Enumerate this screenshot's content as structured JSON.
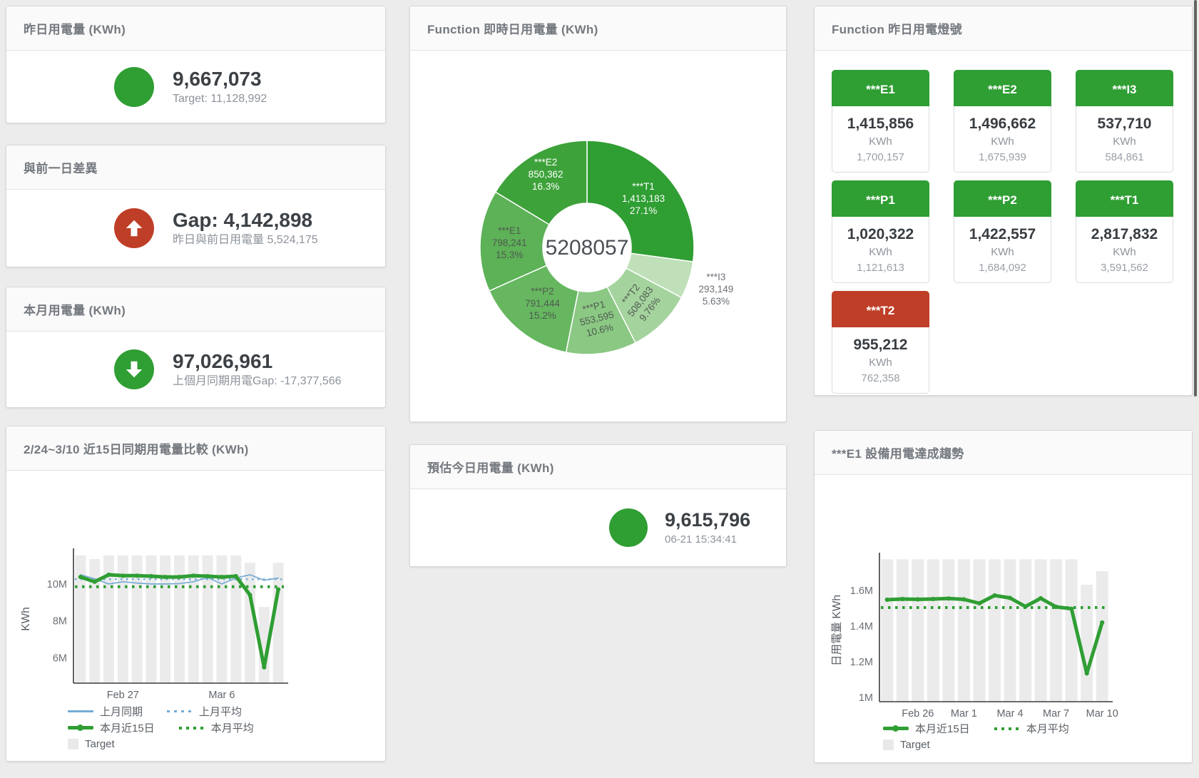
{
  "page": {
    "bg": "#ececec"
  },
  "colors": {
    "green": "#2f9e33",
    "red": "#bf3e27",
    "blue": "#76abd5",
    "bar": "#ebebeb"
  },
  "stat_cards": [
    {
      "title": "昨日用電量 (KWh)",
      "value": "9,667,073",
      "subtitle": "Target: 11,128,992",
      "icon": "circle",
      "icon_color": "#2f9e33"
    },
    {
      "title": "與前一日差異",
      "value": "Gap: 4,142,898",
      "subtitle": "昨日與前日用電量 5,524,175",
      "icon": "arrow-up",
      "icon_color": "#bf3e27"
    },
    {
      "title": "本月用電量 (KWh)",
      "value": "97,026,961",
      "subtitle": "上個月同期用電Gap: -17,377,566",
      "icon": "arrow-down",
      "icon_color": "#2f9e33"
    },
    {
      "title": "預估今日用電量 (KWh)",
      "value": "9,615,796",
      "subtitle": "06-21 15:34:41",
      "icon": "circle",
      "icon_color": "#2f9e33"
    }
  ],
  "lights": {
    "title": "Function 昨日用電燈號",
    "tiles": [
      {
        "name": "***E1",
        "value": "1,415,856",
        "unit": "KWh",
        "target": "1,700,157",
        "color": "#2f9e33"
      },
      {
        "name": "***E2",
        "value": "1,496,662",
        "unit": "KWh",
        "target": "1,675,939",
        "color": "#2f9e33"
      },
      {
        "name": "***I3",
        "value": "537,710",
        "unit": "KWh",
        "target": "584,861",
        "color": "#2f9e33"
      },
      {
        "name": "***P1",
        "value": "1,020,322",
        "unit": "KWh",
        "target": "1,121,613",
        "color": "#2f9e33"
      },
      {
        "name": "***P2",
        "value": "1,422,557",
        "unit": "KWh",
        "target": "1,684,092",
        "color": "#2f9e33"
      },
      {
        "name": "***T1",
        "value": "2,817,832",
        "unit": "KWh",
        "target": "3,591,562",
        "color": "#2f9e33"
      },
      {
        "name": "***T2",
        "value": "955,212",
        "unit": "KWh",
        "target": "762,358",
        "color": "#bf3e27"
      }
    ]
  },
  "chart_data": [
    {
      "id": "realtime-donut",
      "type": "pie",
      "title": "Function 即時日用電量 (KWh)",
      "center_total": "5208057",
      "slices": [
        {
          "label": "***T1",
          "value": 1413183,
          "display": "1,413,183",
          "pct": "27.1%",
          "color": "#2f9e33"
        },
        {
          "label": "***I3",
          "value": 293149,
          "display": "293,149",
          "pct": "5.63%",
          "color": "#bfe0b9"
        },
        {
          "label": "***T2",
          "value": 508083,
          "display": "508,083",
          "pct": "9.76%",
          "color": "#a5d39e"
        },
        {
          "label": "***P1",
          "value": 553595,
          "display": "553,595",
          "pct": "10.6%",
          "color": "#8bc884"
        },
        {
          "label": "***P2",
          "value": 791444,
          "display": "791,444",
          "pct": "15.2%",
          "color": "#66b760"
        },
        {
          "label": "***E1",
          "value": 798241,
          "display": "798,241",
          "pct": "15.3%",
          "color": "#5db157"
        },
        {
          "label": "***E2",
          "value": 850362,
          "display": "850,362",
          "pct": "16.3%",
          "color": "#3ea23a"
        }
      ]
    },
    {
      "id": "compare-15d",
      "type": "line+bar",
      "title": "2/24~3/10 近15日同期用電量比較 (KWh)",
      "ylabel": "KWh",
      "ylim": [
        4.62,
        11.62
      ],
      "yticks": [
        {
          "v": 6,
          "label": "6M"
        },
        {
          "v": 8,
          "label": "8M"
        },
        {
          "v": 10,
          "label": "10M"
        }
      ],
      "xticks": [
        {
          "i": 3,
          "label": "Feb 27"
        },
        {
          "i": 10,
          "label": "Mar 6"
        }
      ],
      "series": [
        {
          "name": "Target",
          "kind": "bar",
          "color": "#ebebeb",
          "values": [
            11.55,
            11.35,
            11.55,
            11.55,
            11.55,
            11.55,
            11.55,
            11.55,
            11.55,
            11.55,
            11.55,
            11.55,
            11.15,
            8.75,
            11.15
          ]
        },
        {
          "name": "上月平均",
          "kind": "dotted",
          "color": "#76abd5",
          "value": 10.26
        },
        {
          "name": "本月平均",
          "kind": "dotted-bold",
          "color": "#2f9e33",
          "value": 9.85
        },
        {
          "name": "上月同期",
          "kind": "line",
          "color": "#76abd5",
          "values": [
            10.5,
            10.28,
            10.0,
            10.12,
            10.05,
            10.0,
            10.0,
            10.02,
            10.12,
            10.35,
            10.0,
            10.32,
            10.5,
            10.2,
            10.32
          ]
        },
        {
          "name": "本月近15日",
          "kind": "thick",
          "color": "#2f9e33",
          "values": [
            10.38,
            10.12,
            10.5,
            10.45,
            10.45,
            10.42,
            10.38,
            10.38,
            10.45,
            10.42,
            10.38,
            10.42,
            9.4,
            5.48,
            9.7
          ]
        }
      ],
      "legend": [
        [
          {
            "label": "上月同期",
            "marker": "line",
            "color": "#76abd5"
          },
          {
            "label": "上月平均",
            "marker": "dotted",
            "color": "#76abd5"
          }
        ],
        [
          {
            "label": "本月近15日",
            "marker": "thick",
            "color": "#2f9e33"
          },
          {
            "label": "本月平均",
            "marker": "dotted-bold",
            "color": "#2f9e33"
          }
        ],
        [
          {
            "label": "Target",
            "marker": "square",
            "color": "#e9e9e9"
          }
        ]
      ]
    },
    {
      "id": "e1-trend",
      "type": "line+bar",
      "title": "***E1 設備用電達成趨勢",
      "ylabel": "日用電量 KWh",
      "ylim": [
        0.976,
        1.78
      ],
      "yticks": [
        {
          "v": 1,
          "label": "1M"
        },
        {
          "v": 1.2,
          "label": "1.2M"
        },
        {
          "v": 1.4,
          "label": "1.4M"
        },
        {
          "v": 1.6,
          "label": "1.6M"
        }
      ],
      "xticks": [
        {
          "i": 2,
          "label": "Feb 26"
        },
        {
          "i": 5,
          "label": "Mar 1"
        },
        {
          "i": 8,
          "label": "Mar 4"
        },
        {
          "i": 11,
          "label": "Mar 7"
        },
        {
          "i": 14,
          "label": "Mar 10"
        }
      ],
      "series": [
        {
          "name": "Target",
          "kind": "bar",
          "color": "#ebebeb",
          "values": [
            1.775,
            1.775,
            1.775,
            1.775,
            1.775,
            1.775,
            1.775,
            1.775,
            1.775,
            1.775,
            1.775,
            1.775,
            1.775,
            1.632,
            1.708
          ]
        },
        {
          "name": "本月平均",
          "kind": "dotted-bold",
          "color": "#2f9e33",
          "value": 1.504
        },
        {
          "name": "本月近15日",
          "kind": "thick",
          "color": "#2f9e33",
          "values": [
            1.548,
            1.552,
            1.55,
            1.552,
            1.555,
            1.55,
            1.528,
            1.572,
            1.558,
            1.51,
            1.556,
            1.508,
            1.497,
            1.135,
            1.42
          ]
        }
      ],
      "legend": [
        [
          {
            "label": "本月近15日",
            "marker": "thick",
            "color": "#2f9e33"
          },
          {
            "label": "本月平均",
            "marker": "dotted-bold",
            "color": "#2f9e33"
          }
        ],
        [
          {
            "label": "Target",
            "marker": "square",
            "color": "#e9e9e9"
          }
        ]
      ]
    }
  ]
}
